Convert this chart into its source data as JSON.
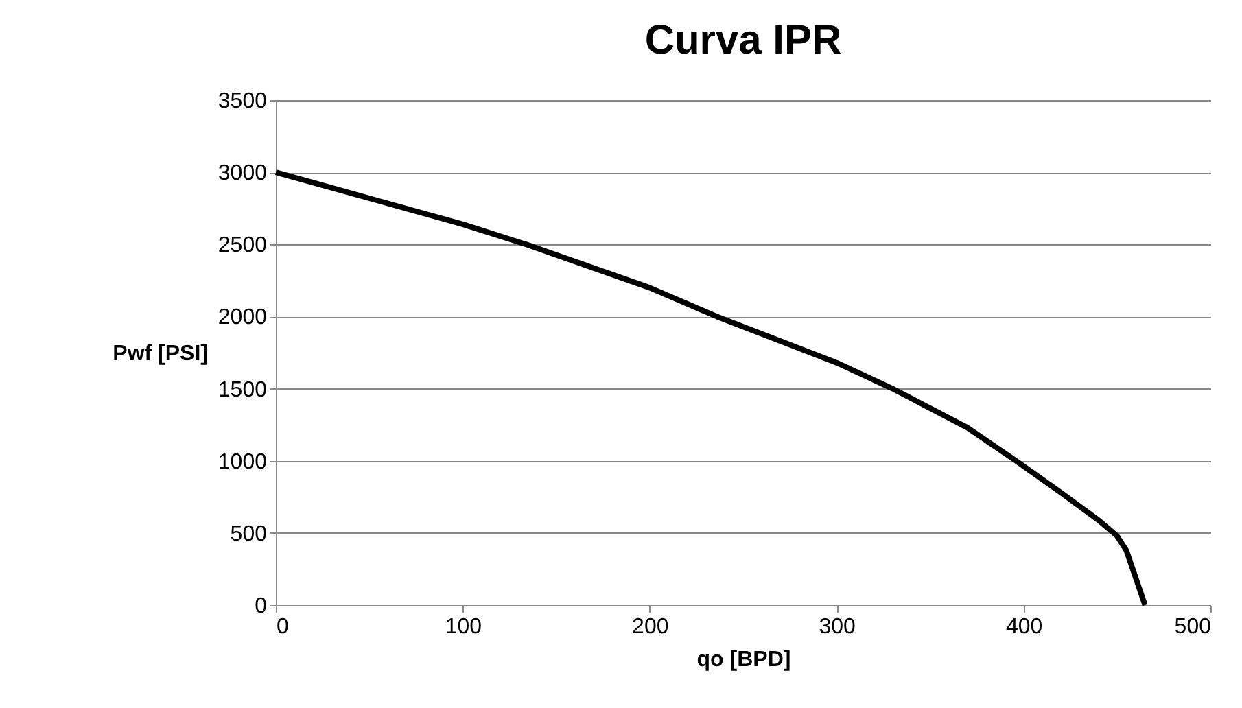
{
  "chart_data": {
    "type": "line",
    "title": "Curva IPR",
    "xlabel": "qo [BPD]",
    "ylabel": "Pwf [PSI]",
    "x": [
      0,
      50,
      100,
      134,
      200,
      236,
      300,
      330,
      370,
      396,
      420,
      440,
      450,
      455,
      465
    ],
    "series": [
      {
        "color": "#000000",
        "values": [
          3000,
          2820,
          2640,
          2500,
          2200,
          2000,
          1680,
          1500,
          1230,
          1000,
          780,
          590,
          480,
          380,
          0
        ]
      }
    ],
    "xlim": [
      0,
      500
    ],
    "xticks": [
      0,
      100,
      200,
      300,
      400,
      500
    ],
    "ylim": [
      0,
      3500
    ],
    "yticks": [
      0,
      500,
      1000,
      1500,
      2000,
      2500,
      3000,
      3500
    ],
    "grid": "y",
    "marker": "none",
    "line_style": "solid"
  }
}
